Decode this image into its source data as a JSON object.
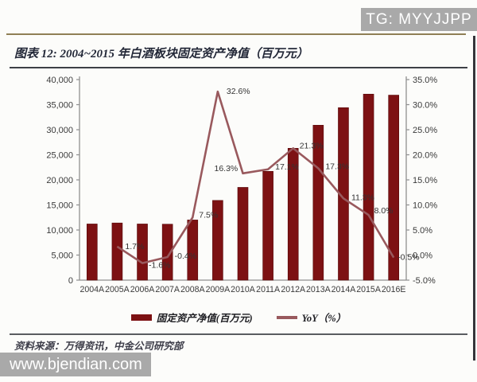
{
  "watermarks": {
    "top_right": "TG: MYYJJPP",
    "bottom_left": "www.bjendian.com"
  },
  "header": {
    "title": "图表 12: 2004~2015 年白酒板块固定资产净值（百万元）"
  },
  "footer": {
    "source": "资料来源：万得资讯，中金公司研究部"
  },
  "legend": {
    "bar_label": "固定资产净值(百万元)",
    "line_label": "YoY（%）"
  },
  "colors": {
    "bar": "#7d1113",
    "bar_edge": "#560809",
    "line": "#99595d",
    "axis": "#8f8f8f",
    "tick_text": "#3a3a3a",
    "data_label": "#333333",
    "watermark_bg": "#a9a9a9"
  },
  "chart_data": {
    "type": "bar",
    "subtype": "bar+line combo",
    "title": "2004~2015 年白酒板块固定资产净值（百万元）",
    "categories": [
      "2004A",
      "2005A",
      "2006A",
      "2007A",
      "2008A",
      "2009A",
      "2010A",
      "2011A",
      "2012A",
      "2013A",
      "2014A",
      "2015A",
      "2016E"
    ],
    "series": [
      {
        "name": "固定资产净值(百万元)",
        "type": "bar",
        "axis": "left",
        "values": [
          11200,
          11400,
          11200,
          11160,
          12000,
          15900,
          18500,
          21700,
          26300,
          30900,
          34400,
          37100,
          36900
        ]
      },
      {
        "name": "YoY（%）",
        "type": "line",
        "axis": "right",
        "values": [
          null,
          1.7,
          -1.6,
          -0.4,
          7.5,
          32.6,
          16.3,
          17.1,
          21.3,
          17.3,
          11.3,
          8.0,
          -0.5
        ],
        "point_labels": [
          "",
          "1.7%",
          "-1.6%",
          "-0.4%",
          "7.5%",
          "32.6%",
          "16.3%",
          "17.1%",
          "21.3%",
          "17.3%",
          "11.3%",
          "8.0%",
          "-0.5%"
        ]
      }
    ],
    "left_axis": {
      "min": 0,
      "max": 40000,
      "step": 5000,
      "tick_labels": [
        "40,000",
        "35,000",
        "30,000",
        "25,000",
        "20,000",
        "15,000",
        "10,000",
        "5,000",
        "0"
      ]
    },
    "right_axis": {
      "min": -5,
      "max": 35,
      "step": 5,
      "tick_labels": [
        "35.0%",
        "30.0%",
        "25.0%",
        "20.0%",
        "15.0%",
        "10.0%",
        "5.0%",
        "0.0%",
        "-5.0%"
      ]
    },
    "grid": false,
    "legend_position": "bottom"
  }
}
